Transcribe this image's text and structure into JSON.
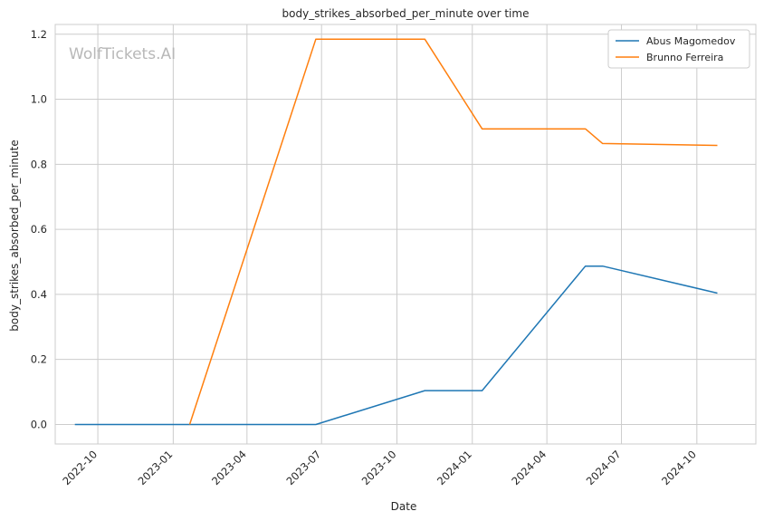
{
  "chart_data": {
    "type": "line",
    "title": "body_strikes_absorbed_per_minute over time",
    "xlabel": "Date",
    "ylabel": "body_strikes_absorbed_per_minute",
    "watermark": "WolfTickets.AI",
    "x_type": "date",
    "xlim": [
      "2022-08-10",
      "2024-12-12"
    ],
    "ylim": [
      -0.06,
      1.23
    ],
    "x_ticks": [
      "2022-10-01",
      "2023-01-01",
      "2023-04-01",
      "2023-07-01",
      "2023-10-01",
      "2024-01-01",
      "2024-04-01",
      "2024-07-01",
      "2024-10-01"
    ],
    "x_tick_labels": [
      "2022-10",
      "2023-01",
      "2023-04",
      "2023-07",
      "2023-10",
      "2024-01",
      "2024-04",
      "2024-07",
      "2024-10"
    ],
    "y_ticks": [
      0.0,
      0.2,
      0.4,
      0.6,
      0.8,
      1.0,
      1.2
    ],
    "y_tick_labels": [
      "0.0",
      "0.2",
      "0.4",
      "0.6",
      "0.8",
      "1.0",
      "1.2"
    ],
    "grid": true,
    "legend_position": "top-right",
    "series": [
      {
        "name": "Abus Magomedov",
        "color": "#1f77b4",
        "x": [
          "2022-09-03",
          "2023-06-24",
          "2023-11-04",
          "2024-01-13",
          "2024-05-18",
          "2024-06-08",
          "2024-10-26"
        ],
        "y": [
          0.0,
          0.0,
          0.104,
          0.104,
          0.487,
          0.487,
          0.404
        ]
      },
      {
        "name": "Brunno Ferreira",
        "color": "#ff7f0e",
        "x": [
          "2023-01-21",
          "2023-06-24",
          "2023-11-04",
          "2024-01-13",
          "2024-05-18",
          "2024-06-08",
          "2024-10-26"
        ],
        "y": [
          0.0,
          1.185,
          1.185,
          0.909,
          0.909,
          0.864,
          0.858
        ]
      }
    ]
  }
}
